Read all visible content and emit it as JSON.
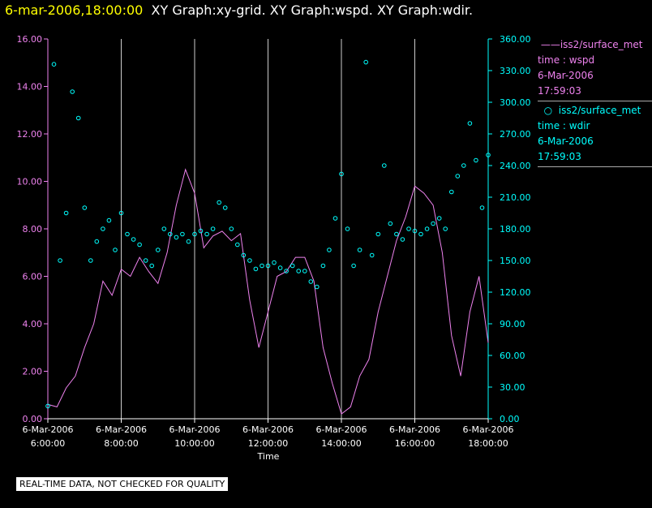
{
  "header": {
    "date_label": "6-mar-2006,18:00:00",
    "graphs_label": "XY Graph:xy-grid.  XY Graph:wspd.  XY Graph:wdir."
  },
  "legend": {
    "series1": {
      "name": "iss2/surface_met",
      "field": "time : wspd",
      "date": "6-Mar-2006",
      "time": "17:59:03"
    },
    "series2": {
      "name": "iss2/surface_met",
      "field": "time : wdir",
      "date": "6-Mar-2006",
      "time": "17:59:03"
    }
  },
  "footer": "REAL-TIME DATA, NOT CHECKED FOR QUALITY",
  "colors": {
    "wspd": "#ee82ee",
    "wdir": "#00ffff",
    "grid": "#cccccc",
    "date": "#ffff00"
  },
  "chart_data": {
    "type": "line",
    "xlabel": "Time",
    "x_ticks": [
      {
        "date": "6-Mar-2006",
        "time": "6:00:00"
      },
      {
        "date": "6-Mar-2006",
        "time": "8:00:00"
      },
      {
        "date": "6-Mar-2006",
        "time": "10:00:00"
      },
      {
        "date": "6-Mar-2006",
        "time": "12:00:00"
      },
      {
        "date": "6-Mar-2006",
        "time": "14:00:00"
      },
      {
        "date": "6-Mar-2006",
        "time": "16:00:00"
      },
      {
        "date": "6-Mar-2006",
        "time": "18:00:00"
      }
    ],
    "xlim": [
      "06:00",
      "18:00"
    ],
    "y_left": {
      "label": "wspd",
      "lim": [
        0,
        16
      ],
      "ticks": [
        "0.00",
        "2.00",
        "4.00",
        "6.00",
        "8.00",
        "10.00",
        "12.00",
        "14.00",
        "16.00"
      ]
    },
    "y_right": {
      "label": "wdir",
      "lim": [
        0,
        360
      ],
      "ticks": [
        "0.00",
        "30.00",
        "60.00",
        "90.00",
        "120.00",
        "150.00",
        "180.00",
        "210.00",
        "240.00",
        "270.00",
        "300.00",
        "330.00",
        "360.00"
      ]
    },
    "grid": "vertical",
    "series": [
      {
        "name": "iss2/surface_met time : wspd",
        "axis": "left",
        "style": "line",
        "x": [
          "06:00",
          "06:15",
          "06:30",
          "06:45",
          "07:00",
          "07:15",
          "07:30",
          "07:45",
          "08:00",
          "08:15",
          "08:30",
          "08:45",
          "09:00",
          "09:15",
          "09:30",
          "09:45",
          "10:00",
          "10:15",
          "10:30",
          "10:45",
          "11:00",
          "11:15",
          "11:30",
          "11:45",
          "12:00",
          "12:15",
          "12:30",
          "12:45",
          "13:00",
          "13:15",
          "13:30",
          "13:45",
          "14:00",
          "14:15",
          "14:30",
          "14:45",
          "15:00",
          "15:15",
          "15:30",
          "15:45",
          "16:00",
          "16:15",
          "16:30",
          "16:45",
          "17:00",
          "17:15",
          "17:30",
          "17:45",
          "18:00"
        ],
        "values": [
          0.6,
          0.5,
          1.3,
          1.8,
          3.0,
          4.0,
          5.8,
          5.2,
          6.3,
          6.0,
          6.8,
          6.2,
          5.7,
          7.0,
          9.0,
          10.5,
          9.5,
          7.2,
          7.7,
          7.9,
          7.5,
          7.8,
          5.0,
          3.0,
          4.5,
          6.0,
          6.2,
          6.8,
          6.8,
          5.8,
          3.0,
          1.5,
          0.2,
          0.5,
          1.8,
          2.5,
          4.5,
          6.0,
          7.5,
          8.5,
          9.8,
          9.5,
          9.0,
          7.0,
          3.5,
          1.8,
          4.5,
          6.0,
          3.2
        ]
      },
      {
        "name": "iss2/surface_met time : wdir",
        "axis": "right",
        "style": "scatter",
        "x": [
          "06:00",
          "06:10",
          "06:20",
          "06:30",
          "06:40",
          "06:50",
          "07:00",
          "07:10",
          "07:20",
          "07:30",
          "07:40",
          "07:50",
          "08:00",
          "08:10",
          "08:20",
          "08:30",
          "08:40",
          "08:50",
          "09:00",
          "09:10",
          "09:20",
          "09:30",
          "09:40",
          "09:50",
          "10:00",
          "10:10",
          "10:20",
          "10:30",
          "10:40",
          "10:50",
          "11:00",
          "11:10",
          "11:20",
          "11:30",
          "11:40",
          "11:50",
          "12:00",
          "12:10",
          "12:20",
          "12:30",
          "12:40",
          "12:50",
          "13:00",
          "13:10",
          "13:20",
          "13:30",
          "13:40",
          "13:50",
          "14:00",
          "14:10",
          "14:20",
          "14:30",
          "14:40",
          "14:50",
          "15:00",
          "15:10",
          "15:20",
          "15:30",
          "15:40",
          "15:50",
          "16:00",
          "16:10",
          "16:20",
          "16:30",
          "16:40",
          "16:50",
          "17:00",
          "17:10",
          "17:20",
          "17:30",
          "17:40",
          "17:50",
          "18:00"
        ],
        "values": [
          12,
          336,
          150,
          195,
          310,
          285,
          200,
          150,
          168,
          180,
          188,
          160,
          195,
          175,
          170,
          165,
          150,
          145,
          160,
          180,
          175,
          172,
          175,
          168,
          175,
          178,
          175,
          180,
          205,
          200,
          180,
          165,
          155,
          150,
          142,
          145,
          145,
          148,
          143,
          140,
          145,
          140,
          140,
          130,
          125,
          145,
          160,
          190,
          232,
          180,
          145,
          160,
          338,
          155,
          175,
          240,
          185,
          175,
          170,
          180,
          178,
          175,
          180,
          185,
          190,
          180,
          215,
          230,
          240,
          280,
          245,
          200,
          250
        ]
      }
    ]
  }
}
